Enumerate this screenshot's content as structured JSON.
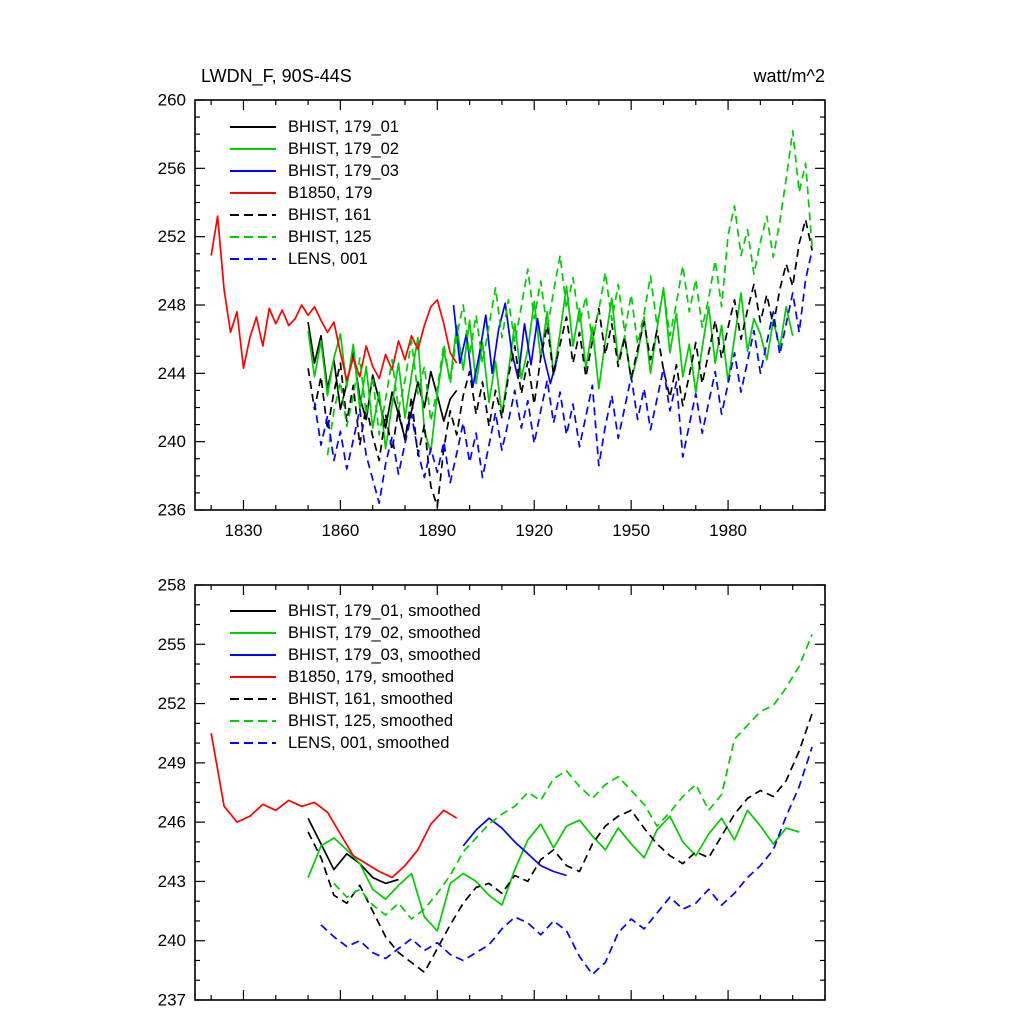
{
  "page": {
    "title_left": "LWDN_F, 90S-44S",
    "title_right": "watt/m^2"
  },
  "chart_data": [
    {
      "type": "line",
      "title_left": "LWDN_F, 90S-44S",
      "title_right": "watt/m^2",
      "xlim": [
        1815,
        2010
      ],
      "ylim": [
        236,
        260
      ],
      "yticks": [
        236,
        240,
        244,
        248,
        252,
        256,
        260
      ],
      "ytick_minor": 1,
      "xticks": [
        1830,
        1860,
        1890,
        1920,
        1950,
        1980
      ],
      "xtick_minor": 10,
      "xtick_labels_visible": true,
      "grid": false,
      "legend_position": "top-left-inside",
      "series": [
        {
          "name": "BHIST, 179_01",
          "color": "#000000",
          "dash": false,
          "x0": 1850,
          "dx": 2,
          "values": [
            247.0,
            244.6,
            246.2,
            243.1,
            244.8,
            241.9,
            243.4,
            245.2,
            242.6,
            241.3,
            243.9,
            242.4,
            240.8,
            242.9,
            241.6,
            240.2,
            241.8,
            243.5,
            242.0,
            244.1,
            242.7,
            241.2,
            242.5,
            243.0
          ]
        },
        {
          "name": "BHIST, 179_02",
          "color": "#00cc00",
          "dash": false,
          "x0": 1850,
          "dx": 2,
          "values": [
            246.5,
            243.8,
            245.9,
            242.7,
            244.9,
            246.3,
            243.2,
            245.7,
            241.9,
            244.4,
            240.8,
            242.9,
            239.6,
            242.2,
            244.6,
            241.4,
            243.9,
            246.1,
            240.6,
            239.4,
            242.8,
            245.3,
            243.6,
            246.8,
            244.2,
            247.1,
            243.4,
            245.8,
            242.3,
            244.7,
            241.6,
            244.1,
            246.9,
            243.7,
            245.4,
            248.2,
            244.9,
            247.6,
            243.9,
            246.4,
            249.1,
            245.6,
            247.8,
            244.3,
            246.7,
            243.1,
            245.9,
            248.4,
            244.7,
            246.2,
            243.6,
            245.1,
            247.3,
            244.0,
            246.6,
            249.0,
            245.2,
            247.5,
            243.8,
            245.7,
            242.9,
            245.5,
            247.9,
            244.6,
            246.8,
            243.5,
            246.1,
            248.7,
            245.3,
            247.2,
            246.3,
            244.8,
            247.1,
            245.5,
            247.9,
            246.2
          ]
        },
        {
          "name": "BHIST, 179_03",
          "color": "#0000ff",
          "dash": false,
          "x0": 1895,
          "dx": 2,
          "values": [
            248.0,
            244.6,
            246.3,
            243.2,
            245.1,
            247.4,
            244.0,
            246.6,
            248.1,
            245.3,
            243.7,
            246.9,
            244.5,
            247.2,
            245.0,
            243.4,
            244.8
          ]
        },
        {
          "name": "B1850, 179",
          "color": "#ff0000",
          "dash": false,
          "x0": 1820,
          "dx": 2,
          "values": [
            250.9,
            253.2,
            248.9,
            246.4,
            247.6,
            244.3,
            246.1,
            247.3,
            245.6,
            247.8,
            246.9,
            247.7,
            246.8,
            247.2,
            248.0,
            247.4,
            247.9,
            247.1,
            246.4,
            247.0,
            245.2,
            243.6,
            244.9,
            243.8,
            245.6,
            244.4,
            243.7,
            245.1,
            244.2,
            245.9,
            244.8,
            246.2,
            245.4,
            246.8,
            247.9,
            248.3,
            246.9,
            245.2,
            244.6
          ]
        },
        {
          "name": "BHIST, 161",
          "color": "#000000",
          "dash": true,
          "x0": 1850,
          "dx": 2,
          "values": [
            244.3,
            241.9,
            243.8,
            240.7,
            242.9,
            244.6,
            241.2,
            243.3,
            239.8,
            242.1,
            240.3,
            238.9,
            241.6,
            239.5,
            241.9,
            240.1,
            242.6,
            239.2,
            241.0,
            237.4,
            236.2,
            239.6,
            241.8,
            240.4,
            242.7,
            244.1,
            241.6,
            243.5,
            240.9,
            243.0,
            241.4,
            243.8,
            245.6,
            242.8,
            244.7,
            242.2,
            244.9,
            246.8,
            243.9,
            245.7,
            247.3,
            244.6,
            246.4,
            243.8,
            245.9,
            247.8,
            245.1,
            246.9,
            244.4,
            246.1,
            243.7,
            245.4,
            247.0,
            244.8,
            246.5,
            244.2,
            242.6,
            244.5,
            242.1,
            243.9,
            245.8,
            243.4,
            245.2,
            247.1,
            244.9,
            246.7,
            248.3,
            246.0,
            247.7,
            249.2,
            247.0,
            248.6,
            246.8,
            248.9,
            250.4,
            249.1,
            251.6,
            253.0,
            251.2
          ]
        },
        {
          "name": "BHIST, 125",
          "color": "#00cc00",
          "dash": true,
          "x0": 1856,
          "dx": 2,
          "values": [
            239.2,
            241.8,
            243.5,
            240.9,
            242.7,
            244.9,
            241.6,
            243.8,
            240.4,
            242.5,
            244.8,
            241.9,
            243.6,
            245.9,
            242.8,
            244.4,
            241.2,
            243.1,
            245.7,
            243.4,
            246.2,
            248.0,
            245.1,
            247.4,
            244.6,
            246.8,
            249.0,
            246.1,
            248.3,
            245.8,
            247.9,
            250.1,
            247.2,
            249.4,
            246.6,
            248.8,
            250.9,
            247.8,
            249.6,
            246.9,
            248.5,
            245.9,
            247.7,
            249.9,
            247.1,
            249.2,
            246.4,
            248.6,
            245.7,
            247.5,
            249.7,
            246.8,
            248.9,
            246.2,
            248.1,
            250.3,
            247.6,
            249.5,
            246.7,
            248.4,
            250.6,
            247.9,
            252.1,
            253.8,
            250.9,
            252.4,
            249.8,
            251.7,
            253.2,
            250.8,
            252.9,
            255.4,
            258.2,
            254.6,
            256.3,
            251.4
          ]
        },
        {
          "name": "LENS, 001",
          "color": "#0000ff",
          "dash": true,
          "x0": 1852,
          "dx": 2,
          "values": [
            242.3,
            239.8,
            241.5,
            238.9,
            240.6,
            238.4,
            240.1,
            241.9,
            239.2,
            237.8,
            236.4,
            238.7,
            240.3,
            238.1,
            239.9,
            241.6,
            239.4,
            237.9,
            239.6,
            238.2,
            240.0,
            237.6,
            239.3,
            241.1,
            238.8,
            240.5,
            237.9,
            239.8,
            241.7,
            239.5,
            241.2,
            243.0,
            240.8,
            242.4,
            239.9,
            241.8,
            243.6,
            241.1,
            242.9,
            240.4,
            242.2,
            239.7,
            241.5,
            243.3,
            238.6,
            240.9,
            242.7,
            240.2,
            242.0,
            243.8,
            241.3,
            243.1,
            240.7,
            242.5,
            244.3,
            241.8,
            243.5,
            239.1,
            241.0,
            242.8,
            240.5,
            242.3,
            244.1,
            241.6,
            243.4,
            245.2,
            242.9,
            244.7,
            246.5,
            244.0,
            245.8,
            247.6,
            245.1,
            246.9,
            248.7,
            246.4,
            249.5,
            251.2
          ]
        }
      ]
    },
    {
      "type": "line",
      "xlim": [
        1815,
        2010
      ],
      "ylim": [
        237,
        258
      ],
      "yticks": [
        237,
        240,
        243,
        246,
        249,
        252,
        255,
        258
      ],
      "ytick_minor": 1,
      "xticks": [
        1830,
        1860,
        1890,
        1920,
        1950,
        1980
      ],
      "xtick_minor": 10,
      "xtick_labels_visible": false,
      "grid": false,
      "legend_position": "top-left-inside",
      "series": [
        {
          "name": "BHIST, 179_01, smoothed",
          "color": "#000000",
          "dash": false,
          "x0": 1850,
          "dx": 4,
          "values": [
            246.2,
            244.9,
            243.6,
            244.4,
            243.9,
            243.2,
            242.9,
            243.1
          ]
        },
        {
          "name": "BHIST, 179_02, smoothed",
          "color": "#00cc00",
          "dash": false,
          "x0": 1850,
          "dx": 4,
          "values": [
            243.2,
            244.8,
            245.2,
            244.6,
            243.9,
            242.6,
            242.1,
            242.8,
            243.4,
            241.2,
            240.5,
            242.9,
            243.4,
            243.0,
            242.3,
            241.8,
            243.6,
            245.1,
            245.9,
            244.7,
            245.8,
            246.1,
            245.3,
            244.6,
            245.7,
            244.9,
            244.2,
            245.6,
            246.3,
            245.0,
            244.3,
            245.4,
            246.2,
            245.1,
            246.6,
            245.8,
            244.9,
            245.7,
            245.5
          ]
        },
        {
          "name": "BHIST, 179_03, smoothed",
          "color": "#0000ff",
          "dash": false,
          "x0": 1898,
          "dx": 4,
          "values": [
            244.8,
            245.6,
            246.2,
            245.7,
            245.0,
            244.4,
            243.8,
            243.5,
            243.3
          ]
        },
        {
          "name": "B1850, 179, smoothed",
          "color": "#ff0000",
          "dash": false,
          "x0": 1820,
          "dx": 4,
          "values": [
            250.5,
            246.8,
            246.0,
            246.3,
            246.9,
            246.6,
            247.1,
            246.8,
            247.0,
            246.5,
            245.4,
            244.3,
            243.9,
            243.5,
            243.2,
            243.8,
            244.6,
            245.9,
            246.6,
            246.2
          ]
        },
        {
          "name": "BHIST, 161, smoothed",
          "color": "#000000",
          "dash": true,
          "x0": 1850,
          "dx": 4,
          "values": [
            245.5,
            244.2,
            242.3,
            241.9,
            242.8,
            241.5,
            240.2,
            239.4,
            238.9,
            238.4,
            239.6,
            240.8,
            241.9,
            242.7,
            242.9,
            242.4,
            243.3,
            243.0,
            244.1,
            244.6,
            243.8,
            243.5,
            244.9,
            245.8,
            246.3,
            246.6,
            245.7,
            244.9,
            244.3,
            243.9,
            244.5,
            244.2,
            245.3,
            246.4,
            247.2,
            247.6,
            247.3,
            248.1,
            249.6,
            251.5
          ]
        },
        {
          "name": "BHIST, 125, smoothed",
          "color": "#00cc00",
          "dash": true,
          "x0": 1858,
          "dx": 4,
          "values": [
            242.9,
            242.2,
            242.6,
            241.8,
            241.3,
            241.9,
            241.1,
            241.6,
            242.4,
            243.3,
            244.5,
            245.2,
            245.9,
            246.4,
            246.8,
            247.5,
            247.1,
            248.2,
            248.6,
            247.8,
            247.2,
            247.9,
            248.3,
            247.6,
            246.9,
            245.8,
            246.5,
            247.3,
            247.9,
            246.6,
            247.4,
            250.2,
            250.9,
            251.6,
            251.9,
            252.8,
            253.9,
            255.5
          ]
        },
        {
          "name": "LENS, 001, smoothed",
          "color": "#0000ff",
          "dash": true,
          "x0": 1854,
          "dx": 4,
          "values": [
            240.8,
            240.2,
            239.7,
            240.0,
            239.4,
            239.1,
            239.6,
            240.1,
            239.5,
            239.9,
            239.3,
            239.0,
            239.4,
            239.8,
            240.6,
            241.2,
            240.9,
            240.3,
            241.0,
            240.5,
            239.2,
            238.3,
            238.9,
            240.4,
            241.1,
            240.6,
            241.4,
            242.2,
            241.6,
            241.9,
            242.6,
            241.8,
            242.4,
            243.2,
            243.8,
            244.6,
            246.3,
            247.8,
            249.8
          ]
        }
      ]
    }
  ]
}
